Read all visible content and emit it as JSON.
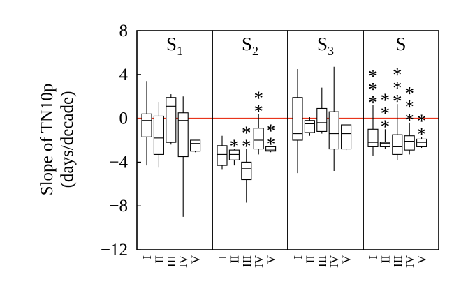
{
  "chart_data": {
    "type": "box",
    "ylabel_line1": "Slope of TN10p",
    "ylabel_line2": "(days/decade)",
    "ylim": [
      -12,
      8
    ],
    "yticks": [
      8,
      4,
      0,
      -4,
      -8,
      -12
    ],
    "ytick_labels": [
      "8",
      "4",
      "0",
      "−4",
      "−8",
      "−12"
    ],
    "reference_line": {
      "y": 0,
      "color": "#e8341c"
    },
    "categories": [
      "I",
      "II",
      "III",
      "IV",
      "V"
    ],
    "panels": [
      {
        "label": "S",
        "subscript": "1",
        "boxes": [
          {
            "cat": "I",
            "min": -4.3,
            "q1": -1.7,
            "median": -0.2,
            "q3": 0.4,
            "max": 3.4,
            "stars": 0
          },
          {
            "cat": "II",
            "min": -4.5,
            "q1": -3.3,
            "median": -1.8,
            "q3": 0.2,
            "max": 1.5,
            "stars": 0
          },
          {
            "cat": "III",
            "min": -2.4,
            "q1": -2.2,
            "median": 1.1,
            "q3": 1.9,
            "max": 2.2,
            "stars": 0
          },
          {
            "cat": "IV",
            "min": -9.0,
            "q1": -3.5,
            "median": -0.2,
            "q3": 0.5,
            "max": 2.0,
            "stars": 0
          },
          {
            "cat": "V",
            "min": -3.1,
            "q1": -3.0,
            "median": -2.3,
            "q3": -2.0,
            "max": -2.0,
            "stars": 0
          }
        ]
      },
      {
        "label": "S",
        "subscript": "2",
        "boxes": [
          {
            "cat": "I",
            "min": -4.7,
            "q1": -4.3,
            "median": -3.3,
            "q3": -2.5,
            "max": -1.6,
            "stars": 0
          },
          {
            "cat": "II",
            "min": -4.3,
            "q1": -3.8,
            "median": -3.3,
            "q3": -2.9,
            "max": -2.8,
            "stars": 1
          },
          {
            "cat": "III",
            "min": -7.7,
            "q1": -5.6,
            "median": -4.6,
            "q3": -4.0,
            "max": -2.8,
            "stars": 2
          },
          {
            "cat": "IV",
            "min": -3.3,
            "q1": -2.8,
            "median": -2.0,
            "q3": -0.9,
            "max": 0.4,
            "stars": 2
          },
          {
            "cat": "V",
            "min": -3.1,
            "q1": -3.0,
            "median": -2.9,
            "q3": -2.6,
            "max": -2.6,
            "stars": 2
          }
        ]
      },
      {
        "label": "S",
        "subscript": "3",
        "boxes": [
          {
            "cat": "I",
            "min": -5.0,
            "q1": -2.0,
            "median": -1.4,
            "q3": 1.9,
            "max": 4.5,
            "stars": 0
          },
          {
            "cat": "II",
            "min": -1.6,
            "q1": -1.3,
            "median": -0.5,
            "q3": -0.2,
            "max": 0.1,
            "stars": 0
          },
          {
            "cat": "III",
            "min": -1.4,
            "q1": -1.2,
            "median": -0.4,
            "q3": 0.9,
            "max": 2.8,
            "stars": 0
          },
          {
            "cat": "IV",
            "min": -4.8,
            "q1": -2.8,
            "median": -1.4,
            "q3": 0.6,
            "max": 4.7,
            "stars": 0
          },
          {
            "cat": "V",
            "min": -2.9,
            "q1": -2.8,
            "median": -1.4,
            "q3": -0.6,
            "max": -0.6,
            "stars": 0
          }
        ]
      },
      {
        "label": "S",
        "subscript": "",
        "boxes": [
          {
            "cat": "I",
            "min": -3.4,
            "q1": -2.6,
            "median": -2.2,
            "q3": -1.0,
            "max": 1.2,
            "stars": 3
          },
          {
            "cat": "II",
            "min": -2.8,
            "q1": -2.6,
            "median": -2.3,
            "q3": -2.2,
            "max": -1.0,
            "stars": 3
          },
          {
            "cat": "III",
            "min": -3.8,
            "q1": -3.3,
            "median": -2.6,
            "q3": -1.5,
            "max": 1.3,
            "stars": 3
          },
          {
            "cat": "IV",
            "min": -3.3,
            "q1": -2.9,
            "median": -2.1,
            "q3": -1.6,
            "max": -0.4,
            "stars": 3
          },
          {
            "cat": "V",
            "min": -2.7,
            "q1": -2.6,
            "median": -2.2,
            "q3": -1.9,
            "max": -1.7,
            "stars": 2
          }
        ]
      }
    ]
  }
}
